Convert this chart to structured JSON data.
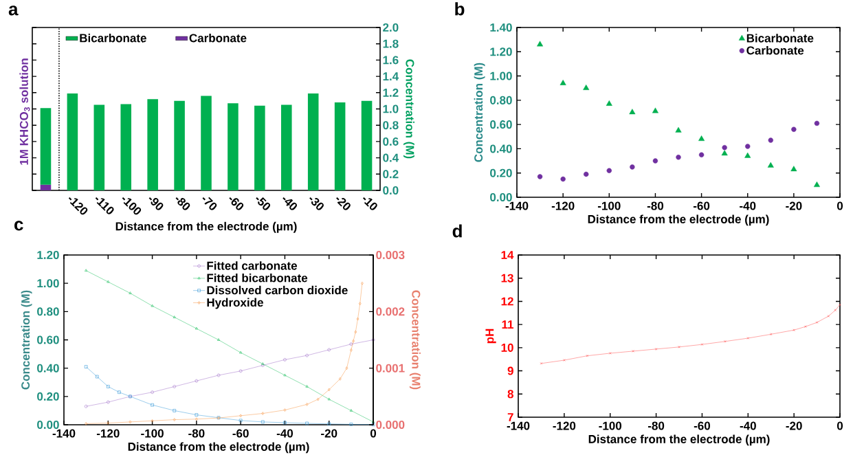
{
  "chart_data": [
    {
      "type": "bar",
      "title": "a",
      "xlabel": "Distance from the electrode (µm)",
      "ylabel": "Concentration (M)",
      "annotations": [
        "1M KHCO$_{3}$ solution"
      ],
      "categories": [
        null,
        "-120",
        "-110",
        "-100",
        "-90",
        "-80",
        "-70",
        "-60",
        "-50",
        "-40",
        "-30",
        "-20",
        "-10"
      ],
      "stacked": true,
      "legend": "top left",
      "series": [
        {
          "name": "Carbonate",
          "color": "#7030a0",
          "values": [
            0.07,
            null,
            null,
            null,
            null,
            null,
            null,
            null,
            null,
            null,
            null,
            null,
            null
          ]
        },
        {
          "name": "Bicarbonate",
          "color": "#00b050",
          "values": [
            0.94,
            1.19,
            1.05,
            1.06,
            1.12,
            1.1,
            1.16,
            1.07,
            1.04,
            1.05,
            1.19,
            1.08,
            1.1
          ]
        }
      ],
      "ylim": [
        0,
        2
      ],
      "yticks": [
        {
          "value": 0,
          "label": "0.0"
        },
        {
          "value": 0.2,
          "label": "0.2"
        },
        {
          "value": 0.4,
          "label": "0.4"
        },
        {
          "value": 0.6,
          "label": "0.6"
        },
        {
          "value": 0.8,
          "label": "0.8"
        },
        {
          "value": 1,
          "label": "1.0"
        },
        {
          "value": 1.2,
          "label": "1.2"
        },
        {
          "value": 1.4,
          "label": "1.4"
        },
        {
          "value": 1.6,
          "label": "1.6"
        },
        {
          "value": 1.8,
          "label": "1.8"
        },
        {
          "value": 2,
          "label": "2.0"
        }
      ]
    },
    {
      "type": "scatter",
      "title": "b",
      "xlabel": "Distance from the electrode (µm)",
      "ylabel": "Concentration (M)",
      "legend": "top right",
      "x": [
        -130,
        -120,
        -110,
        -100,
        -90,
        -80,
        -70,
        -60,
        -50,
        -40,
        -30,
        -20,
        -10
      ],
      "series": [
        {
          "name": "Bicarbonate",
          "color": "#00b050",
          "marker": "triangle",
          "values": [
            1.26,
            0.94,
            0.9,
            0.77,
            0.7,
            0.71,
            0.55,
            0.48,
            0.36,
            0.34,
            0.26,
            0.23,
            0.1
          ]
        },
        {
          "name": "Carbonate",
          "color": "#7030a0",
          "marker": "circle",
          "values": [
            0.17,
            0.15,
            0.19,
            0.22,
            0.25,
            0.3,
            0.33,
            0.35,
            0.41,
            0.42,
            0.47,
            0.56,
            0.61
          ]
        }
      ],
      "xlim": [
        -140,
        0
      ],
      "xticks": [
        -140,
        -120,
        -100,
        -80,
        -60,
        -40,
        -20,
        0
      ],
      "ylim": [
        0,
        1.4
      ],
      "yticks": [
        {
          "value": 0,
          "label": "0.00"
        },
        {
          "value": 0.2,
          "label": "0.20"
        },
        {
          "value": 0.4,
          "label": "0.40"
        },
        {
          "value": 0.6,
          "label": "0.60"
        },
        {
          "value": 0.8,
          "label": "0.80"
        },
        {
          "value": 1,
          "label": "1.00"
        },
        {
          "value": 1.2,
          "label": "1.20"
        },
        {
          "value": 1.4,
          "label": "1.40"
        }
      ]
    },
    {
      "type": "line",
      "title": "c",
      "xlabel": "Distance from the electrode (µm)",
      "ylabel": "Concentration (M)",
      "y2label": "Concentration (M)",
      "legend": "top right",
      "x": [
        -130,
        -120,
        -110,
        -100,
        -90,
        -80,
        -70,
        -60,
        -50,
        -40,
        -30,
        -20,
        -10,
        0
      ],
      "series": [
        {
          "name": "Fitted carbonate",
          "color": "#a070c8",
          "marker": "circle",
          "values": [
            0.13,
            0.16,
            0.2,
            0.23,
            0.27,
            0.31,
            0.35,
            0.38,
            0.42,
            0.46,
            0.49,
            0.53,
            0.57,
            0.6
          ]
        },
        {
          "name": "Fitted bicarbonate",
          "color": "#20c060",
          "marker": "triangle",
          "values": [
            1.09,
            1.01,
            0.93,
            0.84,
            0.76,
            0.68,
            0.6,
            0.51,
            0.43,
            0.35,
            0.27,
            0.18,
            0.1,
            0.02
          ]
        },
        {
          "name": "Dissolved carbon dioxide",
          "color": "#3a9ad9",
          "marker": "square",
          "x": [
            -130,
            -125,
            -120,
            -115,
            -110,
            -100,
            -90,
            -80,
            -70,
            -60,
            -50,
            -40,
            -30,
            -20,
            -10,
            0
          ],
          "values": [
            0.41,
            0.34,
            0.27,
            0.23,
            0.2,
            0.14,
            0.1,
            0.07,
            0.05,
            0.03,
            0.02,
            0.015,
            0.01,
            0.006,
            0.003,
            0.001
          ]
        },
        {
          "name": "Hydroxide",
          "color": "#f79646",
          "marker": "diamond",
          "axis": "y2",
          "x": [
            -130,
            -120,
            -110,
            -100,
            -90,
            -80,
            -70,
            -60,
            -50,
            -40,
            -30,
            -25,
            -20,
            -15,
            -12,
            -10,
            -9,
            -8,
            -7,
            -6,
            -5
          ],
          "values": [
            2e-05,
            3e-05,
            5e-05,
            7e-05,
            9e-05,
            0.0001,
            0.00012,
            0.00016,
            0.0002,
            0.00026,
            0.00036,
            0.00045,
            0.00062,
            0.00081,
            0.001,
            0.00132,
            0.00148,
            0.00164,
            0.00187,
            0.00214,
            0.0025
          ]
        }
      ],
      "xlim": [
        -140,
        0
      ],
      "xticks": [
        -140,
        -120,
        -100,
        -80,
        -60,
        -40,
        -20,
        0
      ],
      "ylim": [
        0,
        1.2
      ],
      "yticks": [
        {
          "value": 0,
          "label": "0.00"
        },
        {
          "value": 0.2,
          "label": "0.20"
        },
        {
          "value": 0.4,
          "label": "0.40"
        },
        {
          "value": 0.6,
          "label": "0.60"
        },
        {
          "value": 0.8,
          "label": "0.80"
        },
        {
          "value": 1,
          "label": "1.00"
        },
        {
          "value": 1.2,
          "label": "1.20"
        }
      ],
      "y2lim": [
        0,
        0.003
      ],
      "y2ticks": [
        {
          "value": 0,
          "label": "0.000"
        },
        {
          "value": 0.001,
          "label": "0.001"
        },
        {
          "value": 0.002,
          "label": "0.002"
        },
        {
          "value": 0.003,
          "label": "0.003"
        }
      ]
    },
    {
      "type": "line",
      "title": "d",
      "xlabel": "Distance from the electrode (µm)",
      "ylabel": "pH",
      "x": [
        -130,
        -120,
        -110,
        -100,
        -90,
        -80,
        -70,
        -60,
        -50,
        -40,
        -30,
        -20,
        -15,
        -10,
        -5,
        -2,
        0
      ],
      "series": [
        {
          "color": "#ff5050",
          "marker": "cross",
          "values": [
            9.32,
            9.46,
            9.65,
            9.76,
            9.85,
            9.94,
            10.03,
            10.14,
            10.27,
            10.41,
            10.58,
            10.76,
            10.91,
            11.09,
            11.36,
            11.62,
            11.85
          ]
        }
      ],
      "xlim": [
        -140,
        0
      ],
      "xticks": [
        -140,
        -120,
        -100,
        -80,
        -60,
        -40,
        -20,
        0
      ],
      "ylim": [
        7,
        14
      ],
      "yticks": [
        7,
        8,
        9,
        10,
        11,
        12,
        13,
        14
      ]
    }
  ]
}
